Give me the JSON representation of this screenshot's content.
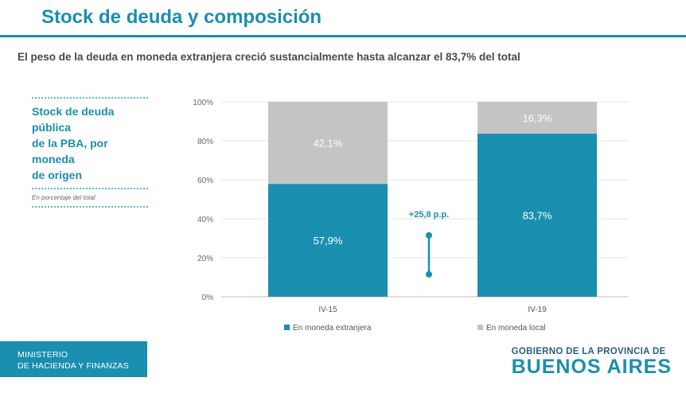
{
  "header": {
    "title": "Stock de deuda y composición",
    "subtitle": "El peso de la deuda en moneda extranjera creció sustancialmente hasta alcanzar el 83,7% del total"
  },
  "side_panel": {
    "title_lines": [
      "Stock de deuda pública",
      "de la PBA, por moneda",
      "de origen"
    ],
    "note": "En porcentaje del total"
  },
  "footer": {
    "ministry_lines": [
      "MINISTERIO",
      "DE HACIENDA Y FINANZAS"
    ],
    "logo_small": "GOBIERNO DE LA PROVINCIA DE",
    "logo_big": "BUENOS AIRES"
  },
  "colors": {
    "accent": "#1a8fb0",
    "foreign": "#1a8fb0",
    "local": "#c4c4c4"
  },
  "chart_data": {
    "type": "bar",
    "stacked": true,
    "categories": [
      "IV-15",
      "IV-19"
    ],
    "series": [
      {
        "name": "En moneda extranjera",
        "values": [
          57.9,
          83.7
        ],
        "labels": [
          "57,9%",
          "83,7%"
        ],
        "color": "#1a8fb0"
      },
      {
        "name": "En moneda local",
        "values": [
          42.1,
          16.3
        ],
        "labels": [
          "42,1%",
          "16,3%"
        ],
        "color": "#c4c4c4"
      }
    ],
    "yticks": [
      "0%",
      "20%",
      "40%",
      "60%",
      "80%",
      "100%"
    ],
    "ylim": [
      0,
      100
    ],
    "legend_position": "bottom",
    "annotation": {
      "text": "+25,8 p.p.",
      "from": 11.5,
      "to": 31.5
    }
  }
}
